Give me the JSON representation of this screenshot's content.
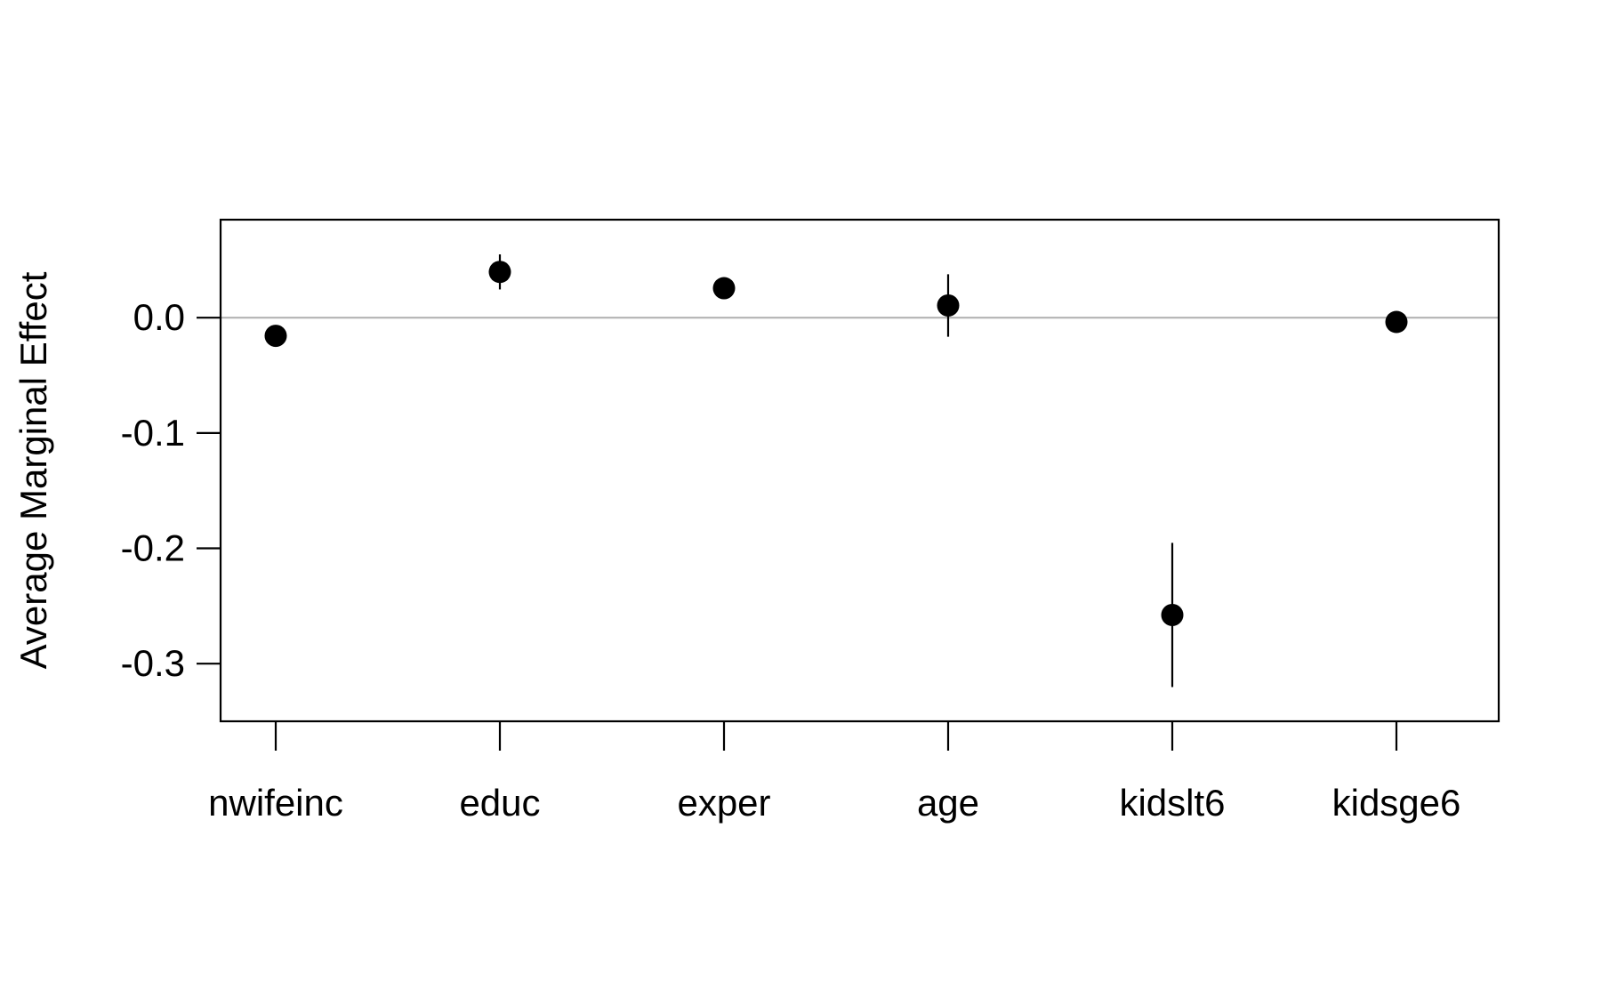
{
  "chart_data": {
    "type": "scatter",
    "title": "",
    "xlabel": "",
    "ylabel": "Average Marginal Effect",
    "categories": [
      "nwifeinc",
      "educ",
      "exper",
      "age",
      "kidslt6",
      "kidsge6"
    ],
    "values": [
      -0.0157,
      0.0397,
      0.0256,
      0.0106,
      -0.2578,
      -0.0037
    ],
    "ci_lower": [
      -0.0165,
      0.0245,
      0.0244,
      -0.0165,
      -0.3203,
      -0.0045
    ],
    "ci_upper": [
      -0.0149,
      0.0549,
      0.0268,
      0.0377,
      -0.1953,
      -0.0029
    ],
    "ylim": [
      -0.35,
      0.085
    ],
    "yticks": [
      0.0,
      -0.1,
      -0.2,
      -0.3
    ],
    "ytick_labels": [
      "0.0",
      "-0.1",
      "-0.2",
      "-0.3"
    ],
    "reference_line": 0.0,
    "grid": false,
    "colors": {
      "points": "#000000",
      "reference_line": "#b3b3b3",
      "frame": "#000000"
    }
  }
}
